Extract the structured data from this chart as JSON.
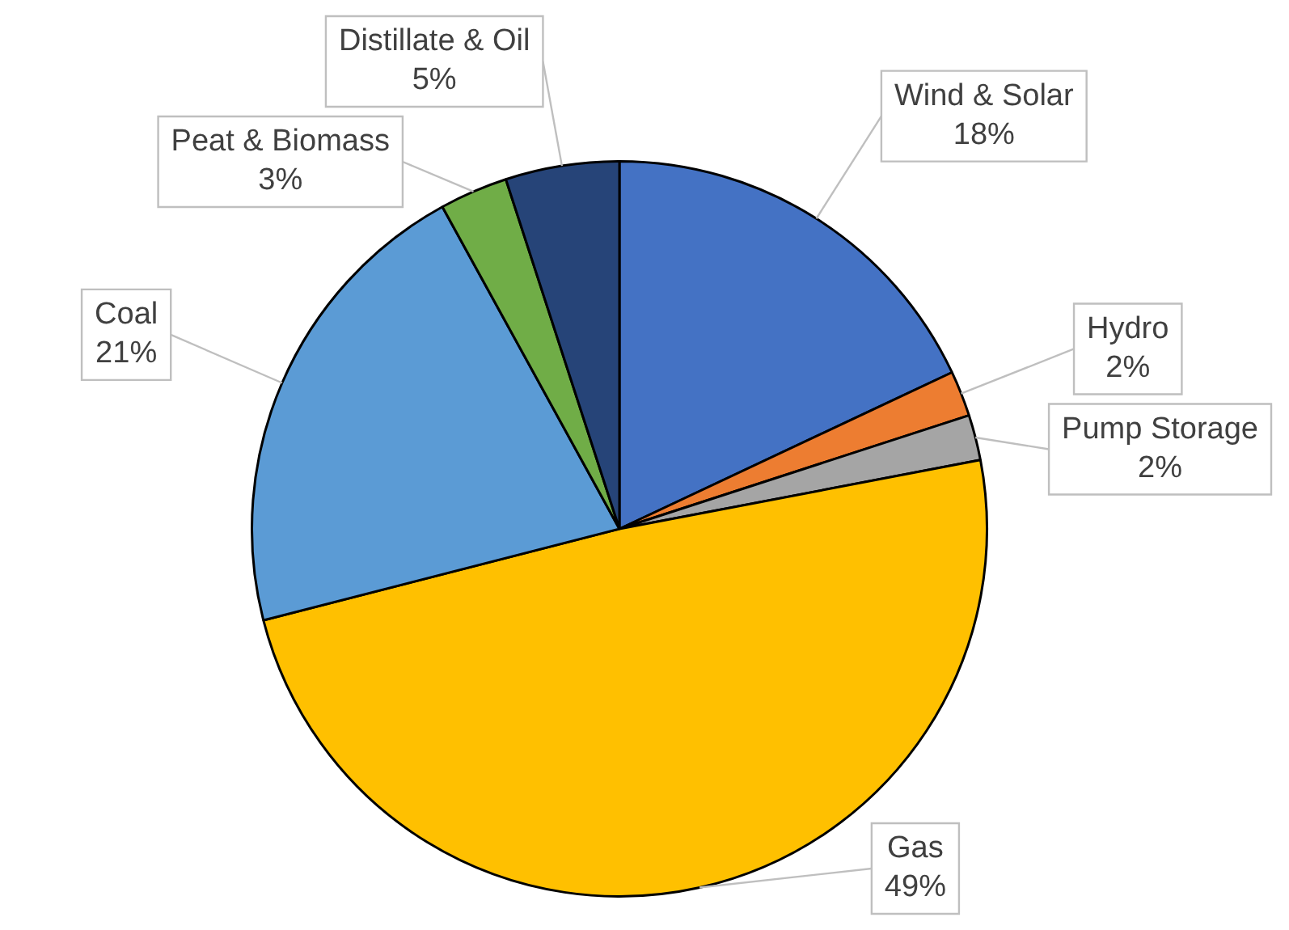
{
  "chart_data": {
    "type": "pie",
    "categories": [
      "Wind & Solar",
      "Hydro",
      "Pump Storage",
      "Gas",
      "Coal",
      "Peat & Biomass",
      "Distillate & Oil"
    ],
    "values": [
      18,
      2,
      2,
      49,
      21,
      3,
      5
    ],
    "value_labels": [
      "18%",
      "2%",
      "2%",
      "49%",
      "21%",
      "3%",
      "5%"
    ],
    "colors": [
      "#4472c4",
      "#ed7d31",
      "#a5a5a5",
      "#ffc000",
      "#5b9bd5",
      "#70ad47",
      "#264478"
    ],
    "legend": false
  }
}
